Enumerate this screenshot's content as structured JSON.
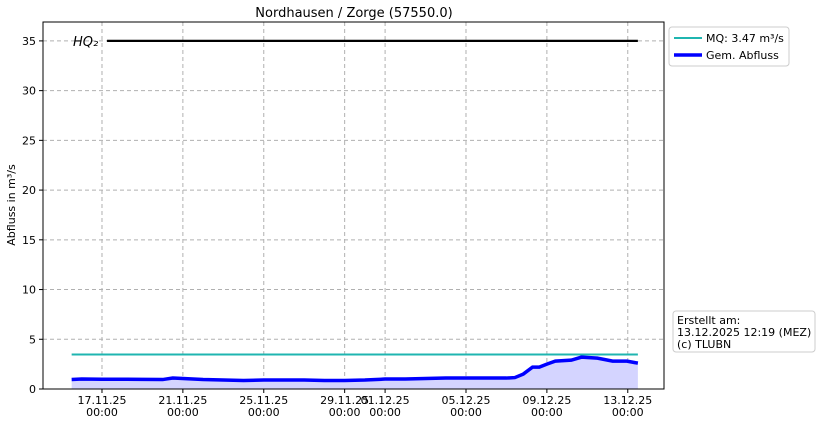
{
  "chart_data": {
    "type": "line",
    "title": "Nordhausen / Zorge (57550.0)",
    "y_label": "Abfluss in m³/s",
    "xlim": [
      "2025-11-14 02:00",
      "2025-12-14 19:00"
    ],
    "ylim": [
      0,
      36.9
    ],
    "yticks": [
      0,
      5,
      10,
      15,
      20,
      25,
      30,
      35
    ],
    "xticks": [
      {
        "value": "2025-11-17 00:00",
        "label": "17.11.25\n00:00"
      },
      {
        "value": "2025-11-21 00:00",
        "label": "21.11.25\n00:00"
      },
      {
        "value": "2025-11-25 00:00",
        "label": "25.11.25\n00:00"
      },
      {
        "value": "2025-11-29 00:00",
        "label": "29.11.25\n00:00"
      },
      {
        "value": "2025-12-01 00:00",
        "label": "01.12.25\n00:00"
      },
      {
        "value": "2025-12-05 00:00",
        "label": "05.12.25\n00:00"
      },
      {
        "value": "2025-12-09 00:00",
        "label": "09.12.25\n00:00"
      },
      {
        "value": "2025-12-13 00:00",
        "label": "13.12.25\n00:00"
      }
    ],
    "grid": true,
    "legend": "upper right outside",
    "series": [
      {
        "name": "MQ: 3.47 m³/s",
        "color": "#1fb5b0",
        "width": 2,
        "x": [
          "2025-11-15 12:00",
          "2025-12-13 12:00"
        ],
        "values": [
          3.47,
          3.47
        ]
      },
      {
        "name": "Gem. Abfluss",
        "color": "#0000ff",
        "width": 3.5,
        "fill": "#d4d4ff",
        "x": [
          "2025-11-15 12:00",
          "2025-11-16 00:00",
          "2025-11-17 00:00",
          "2025-11-18 00:00",
          "2025-11-19 00:00",
          "2025-11-20 00:00",
          "2025-11-20 12:00",
          "2025-11-21 00:00",
          "2025-11-22 00:00",
          "2025-11-23 00:00",
          "2025-11-24 00:00",
          "2025-11-25 00:00",
          "2025-11-26 00:00",
          "2025-11-27 00:00",
          "2025-11-28 00:00",
          "2025-11-29 00:00",
          "2025-11-30 00:00",
          "2025-12-01 00:00",
          "2025-12-02 00:00",
          "2025-12-03 00:00",
          "2025-12-04 00:00",
          "2025-12-05 00:00",
          "2025-12-06 00:00",
          "2025-12-07 00:00",
          "2025-12-07 10:00",
          "2025-12-07 20:00",
          "2025-12-08 07:00",
          "2025-12-08 15:00",
          "2025-12-09 00:00",
          "2025-12-09 10:00",
          "2025-12-10 05:00",
          "2025-12-10 17:00",
          "2025-12-11 12:00",
          "2025-12-12 06:00",
          "2025-12-12 23:00",
          "2025-12-13 12:00"
        ],
        "values": [
          0.95,
          1.0,
          0.98,
          0.98,
          0.97,
          0.95,
          1.1,
          1.05,
          0.95,
          0.9,
          0.85,
          0.9,
          0.9,
          0.9,
          0.85,
          0.85,
          0.9,
          1.0,
          1.0,
          1.05,
          1.1,
          1.1,
          1.1,
          1.1,
          1.15,
          1.5,
          2.2,
          2.2,
          2.5,
          2.8,
          2.9,
          3.2,
          3.1,
          2.8,
          2.8,
          2.6
        ]
      }
    ],
    "hq": {
      "label": "HQ₂",
      "value": 35,
      "color": "#000000",
      "x": [
        "2025-11-17 06:00",
        "2025-12-13 12:00"
      ]
    },
    "info_box": [
      "Erstellt am:",
      "13.12.2025 12:19 (MEZ)",
      "(c) TLUBN"
    ]
  }
}
